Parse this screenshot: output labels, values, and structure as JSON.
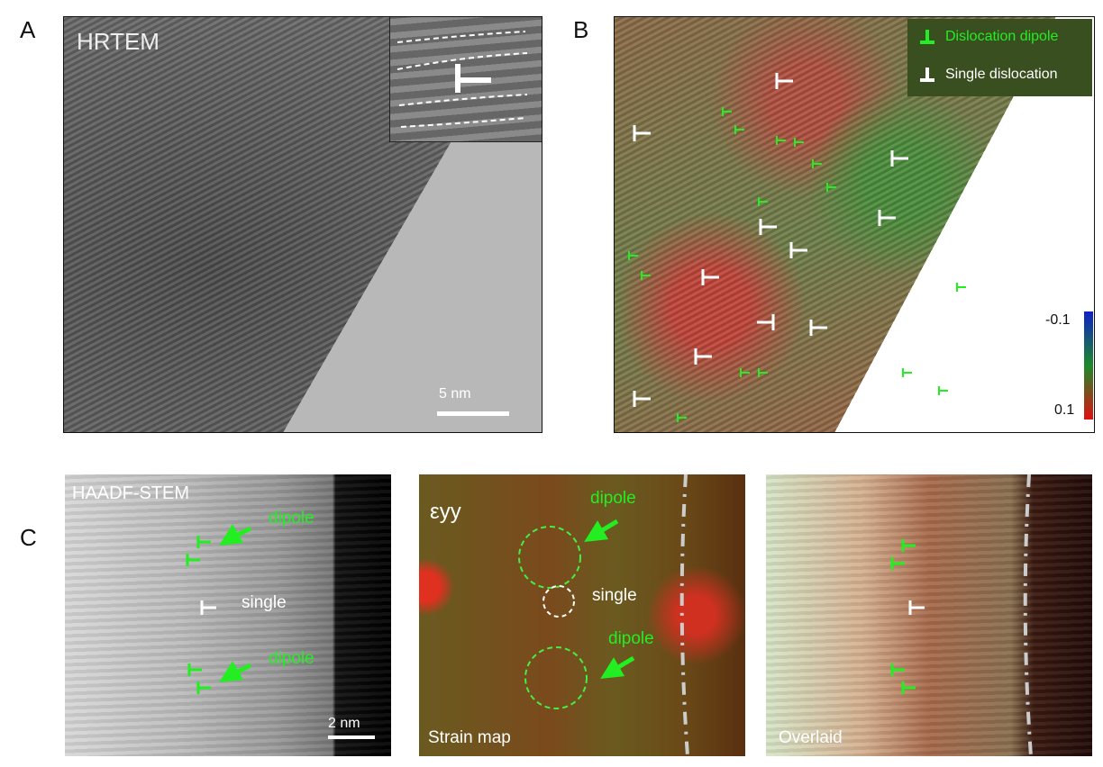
{
  "panel_letters": {
    "a": "A",
    "b": "B",
    "c": "C"
  },
  "panel_a": {
    "label": "HRTEM",
    "scale_bar": "5 nm"
  },
  "panel_b": {
    "legend": {
      "dipole": "Dislocation dipole",
      "single": "Single dislocation"
    },
    "colorbar": {
      "min_label": "-0.1",
      "max_label": "0.1",
      "colors": [
        "#1020c8",
        "#1c8a2a",
        "#e01010"
      ]
    }
  },
  "panel_c": {
    "haadf": {
      "label": "HAADF-STEM",
      "dipole_top": "dipole",
      "single": "single",
      "dipole_bottom": "dipole",
      "scale_bar": "2 nm"
    },
    "strain": {
      "symbol": "εyy",
      "dipole_top": "dipole",
      "single": "single",
      "dipole_bottom": "dipole",
      "label": "Strain map"
    },
    "overlaid": {
      "label": "Overlaid"
    }
  },
  "colors": {
    "dipole": "#22ee22",
    "single": "#ffffff",
    "legend_bg": "#3a4f20"
  }
}
